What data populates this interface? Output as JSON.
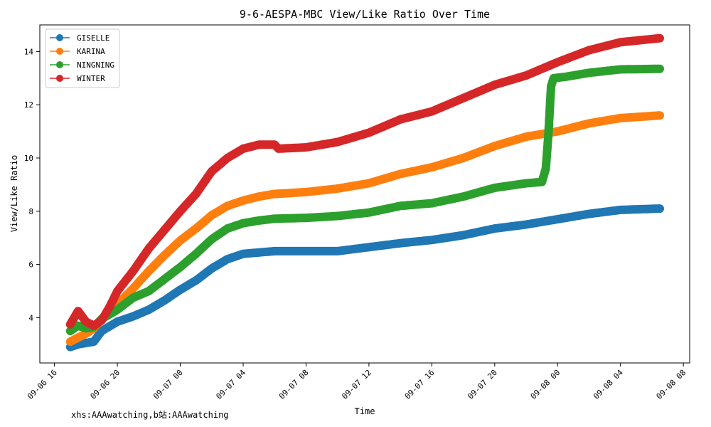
{
  "chart_data": {
    "type": "line",
    "title": "9-6-AESPA-MBC View/Like Ratio Over Time",
    "xlabel": "Time",
    "ylabel": "View/Like Ratio",
    "x_ticks": [
      "09-06 16",
      "09-06 20",
      "09-07 00",
      "09-07 04",
      "09-07 08",
      "09-07 12",
      "09-07 16",
      "09-07 20",
      "09-08 00",
      "09-08 04",
      "09-08 08"
    ],
    "y_ticks": [
      4,
      6,
      8,
      10,
      12,
      14
    ],
    "xlim": [
      "09-06 15:04",
      "09-08 08:24"
    ],
    "ylim": [
      2.3,
      15.0
    ],
    "legend_position": "upper-left",
    "grid": false,
    "series": [
      {
        "name": "GISELLE",
        "color": "#1f77b4",
        "points": [
          [
            "09-06 17:00",
            2.9
          ],
          [
            "09-06 17:30",
            3.0
          ],
          [
            "09-06 18:00",
            3.05
          ],
          [
            "09-06 18:30",
            3.1
          ],
          [
            "09-06 19:00",
            3.5
          ],
          [
            "09-06 20:00",
            3.85
          ],
          [
            "09-06 21:00",
            4.05
          ],
          [
            "09-06 22:00",
            4.3
          ],
          [
            "09-06 23:00",
            4.65
          ],
          [
            "09-07 00:00",
            5.05
          ],
          [
            "09-07 01:00",
            5.4
          ],
          [
            "09-07 02:00",
            5.85
          ],
          [
            "09-07 03:00",
            6.2
          ],
          [
            "09-07 04:00",
            6.4
          ],
          [
            "09-07 05:00",
            6.45
          ],
          [
            "09-07 06:00",
            6.5
          ],
          [
            "09-07 08:00",
            6.5
          ],
          [
            "09-07 10:00",
            6.5
          ],
          [
            "09-07 12:00",
            6.65
          ],
          [
            "09-07 14:00",
            6.8
          ],
          [
            "09-07 16:00",
            6.92
          ],
          [
            "09-07 18:00",
            7.1
          ],
          [
            "09-07 20:00",
            7.35
          ],
          [
            "09-07 22:00",
            7.5
          ],
          [
            "09-08 00:00",
            7.7
          ],
          [
            "09-08 02:00",
            7.9
          ],
          [
            "09-08 04:00",
            8.05
          ],
          [
            "09-08 06:30",
            8.1
          ]
        ]
      },
      {
        "name": "KARINA",
        "color": "#ff7f0e",
        "points": [
          [
            "09-06 17:00",
            3.1
          ],
          [
            "09-06 17:30",
            3.25
          ],
          [
            "09-06 18:00",
            3.4
          ],
          [
            "09-06 18:30",
            3.6
          ],
          [
            "09-06 19:00",
            3.95
          ],
          [
            "09-06 20:00",
            4.5
          ],
          [
            "09-06 21:00",
            5.1
          ],
          [
            "09-06 22:00",
            5.75
          ],
          [
            "09-06 23:00",
            6.35
          ],
          [
            "09-07 00:00",
            6.9
          ],
          [
            "09-07 01:00",
            7.35
          ],
          [
            "09-07 02:00",
            7.85
          ],
          [
            "09-07 03:00",
            8.2
          ],
          [
            "09-07 04:00",
            8.4
          ],
          [
            "09-07 05:00",
            8.55
          ],
          [
            "09-07 06:00",
            8.65
          ],
          [
            "09-07 08:00",
            8.72
          ],
          [
            "09-07 10:00",
            8.85
          ],
          [
            "09-07 12:00",
            9.05
          ],
          [
            "09-07 14:00",
            9.4
          ],
          [
            "09-07 16:00",
            9.65
          ],
          [
            "09-07 18:00",
            10.0
          ],
          [
            "09-07 20:00",
            10.45
          ],
          [
            "09-07 22:00",
            10.8
          ],
          [
            "09-08 00:00",
            11.0
          ],
          [
            "09-08 02:00",
            11.3
          ],
          [
            "09-08 04:00",
            11.5
          ],
          [
            "09-08 06:30",
            11.6
          ]
        ]
      },
      {
        "name": "NINGNING",
        "color": "#2ca02c",
        "points": [
          [
            "09-06 17:00",
            3.5
          ],
          [
            "09-06 17:30",
            3.7
          ],
          [
            "09-06 18:00",
            3.6
          ],
          [
            "09-06 18:30",
            3.65
          ],
          [
            "09-06 19:00",
            3.95
          ],
          [
            "09-06 20:00",
            4.3
          ],
          [
            "09-06 21:00",
            4.75
          ],
          [
            "09-06 22:00",
            5.0
          ],
          [
            "09-06 23:00",
            5.45
          ],
          [
            "09-07 00:00",
            5.9
          ],
          [
            "09-07 01:00",
            6.4
          ],
          [
            "09-07 02:00",
            6.95
          ],
          [
            "09-07 03:00",
            7.35
          ],
          [
            "09-07 04:00",
            7.55
          ],
          [
            "09-07 05:00",
            7.65
          ],
          [
            "09-07 06:00",
            7.72
          ],
          [
            "09-07 08:00",
            7.75
          ],
          [
            "09-07 10:00",
            7.82
          ],
          [
            "09-07 12:00",
            7.95
          ],
          [
            "09-07 14:00",
            8.2
          ],
          [
            "09-07 16:00",
            8.3
          ],
          [
            "09-07 18:00",
            8.55
          ],
          [
            "09-07 20:00",
            8.88
          ],
          [
            "09-07 22:00",
            9.05
          ],
          [
            "09-07 23:00",
            9.1
          ],
          [
            "09-07 23:15",
            9.6
          ],
          [
            "09-07 23:25",
            10.9
          ],
          [
            "09-07 23:35",
            12.7
          ],
          [
            "09-07 23:45",
            13.0
          ],
          [
            "09-08 00:30",
            13.05
          ],
          [
            "09-08 02:00",
            13.2
          ],
          [
            "09-08 04:00",
            13.33
          ],
          [
            "09-08 06:30",
            13.35
          ]
        ]
      },
      {
        "name": "WINTER",
        "color": "#d62728",
        "points": [
          [
            "09-06 17:00",
            3.75
          ],
          [
            "09-06 17:30",
            4.25
          ],
          [
            "09-06 18:00",
            3.85
          ],
          [
            "09-06 18:30",
            3.7
          ],
          [
            "09-06 19:00",
            3.9
          ],
          [
            "09-06 19:30",
            4.4
          ],
          [
            "09-06 20:00",
            5.0
          ],
          [
            "09-06 21:00",
            5.75
          ],
          [
            "09-06 22:00",
            6.6
          ],
          [
            "09-06 23:00",
            7.3
          ],
          [
            "09-07 00:00",
            8.0
          ],
          [
            "09-07 01:00",
            8.65
          ],
          [
            "09-07 02:00",
            9.5
          ],
          [
            "09-07 03:00",
            10.0
          ],
          [
            "09-07 04:00",
            10.35
          ],
          [
            "09-07 05:00",
            10.5
          ],
          [
            "09-07 06:00",
            10.5
          ],
          [
            "09-07 06:15",
            10.35
          ],
          [
            "09-07 08:00",
            10.4
          ],
          [
            "09-07 10:00",
            10.6
          ],
          [
            "09-07 12:00",
            10.95
          ],
          [
            "09-07 14:00",
            11.45
          ],
          [
            "09-07 16:00",
            11.75
          ],
          [
            "09-07 18:00",
            12.25
          ],
          [
            "09-07 20:00",
            12.75
          ],
          [
            "09-07 22:00",
            13.1
          ],
          [
            "09-08 00:00",
            13.6
          ],
          [
            "09-08 02:00",
            14.05
          ],
          [
            "09-08 04:00",
            14.35
          ],
          [
            "09-08 06:30",
            14.5
          ]
        ]
      }
    ]
  },
  "footer_note": "xhs:AAAwatching,b站:AAAwatching"
}
